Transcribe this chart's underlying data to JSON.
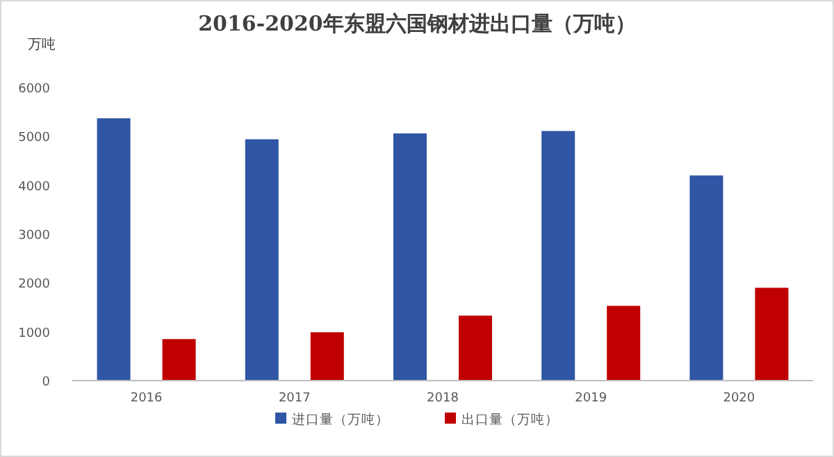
{
  "chart_data": {
    "type": "bar",
    "title": "2016-2020年东盟六国钢材进出口量（万吨）",
    "ylabel": "万吨",
    "categories": [
      "2016",
      "2017",
      "2018",
      "2019",
      "2020"
    ],
    "series": [
      {
        "name": "进口量（万吨）",
        "color": "#2f55a4",
        "values": [
          5370,
          4940,
          5060,
          5110,
          4200
        ]
      },
      {
        "name": "出口量（万吨）",
        "color": "#c00000",
        "values": [
          850,
          990,
          1330,
          1530,
          1900
        ]
      }
    ],
    "ylim": [
      0,
      6000
    ],
    "yticks": [
      0,
      1000,
      2000,
      3000,
      4000,
      5000,
      6000
    ],
    "legend": "bottom"
  }
}
